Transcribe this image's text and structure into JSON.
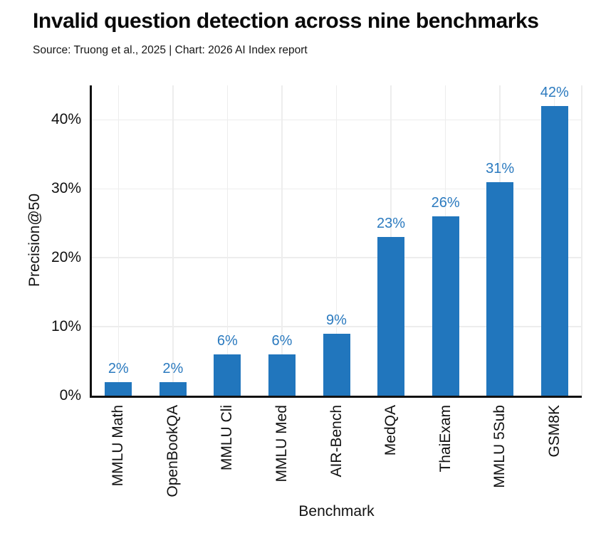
{
  "header": {
    "title": "Invalid question detection across nine benchmarks",
    "subtitle": "Source: Truong et al., 2025 | Chart: 2026 AI Index report"
  },
  "chart_data": {
    "type": "bar",
    "title": "Invalid question detection across nine benchmarks",
    "subtitle": "Source: Truong et al., 2025 | Chart: 2026 AI Index report",
    "categories": [
      "MMLU Math",
      "OpenBookQA",
      "MMLU Cli",
      "MMLU Med",
      "AIR-Bench",
      "MedQA",
      "ThaiExam",
      "MMLU 5Sub",
      "GSM8K"
    ],
    "values": [
      2,
      2,
      6,
      6,
      9,
      23,
      26,
      31,
      42
    ],
    "value_labels": [
      "2%",
      "2%",
      "6%",
      "6%",
      "9%",
      "23%",
      "26%",
      "31%",
      "42%"
    ],
    "xlabel": "Benchmark",
    "ylabel": "Precision@50",
    "ylim": [
      0,
      45
    ],
    "yticks": [
      0,
      10,
      20,
      30,
      40
    ],
    "ytick_labels": [
      "0%",
      "10%",
      "20%",
      "30%",
      "40%"
    ],
    "grid": true,
    "legend": "none",
    "bar_color": "#2176bd",
    "value_label_color": "#2b7abf",
    "grid_color": "#ededed",
    "axis_color": "#111111"
  }
}
